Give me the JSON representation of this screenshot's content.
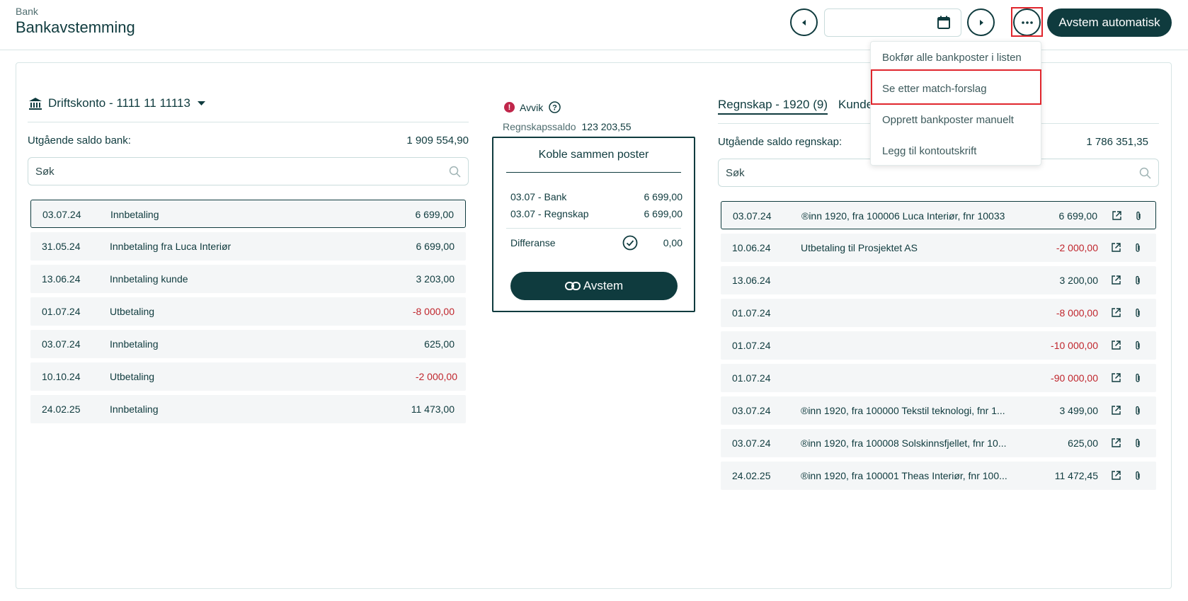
{
  "header": {
    "breadcrumb": "Bank",
    "title": "Bankavstemming",
    "date_value": "",
    "auto_button": "Avstem automatisk"
  },
  "menu": {
    "items": [
      {
        "label": "Bokfør alle bankposter i listen"
      },
      {
        "label": "Se etter match-forslag"
      },
      {
        "label": "Opprett bankposter manuelt"
      },
      {
        "label": "Legg til kontoutskrift"
      }
    ]
  },
  "bank": {
    "account": "Driftskonto - 1111 11 11113",
    "saldo_label": "Utgående saldo bank:",
    "saldo_value": "1 909 554,90",
    "search_placeholder": "Søk",
    "rows": [
      {
        "date": "03.07.24",
        "text": "Innbetaling",
        "amount": "6 699,00"
      },
      {
        "date": "31.05.24",
        "text": "Innbetaling fra Luca Interiør",
        "amount": "6 699,00"
      },
      {
        "date": "13.06.24",
        "text": "Innbetaling kunde",
        "amount": "3 203,00"
      },
      {
        "date": "01.07.24",
        "text": "Utbetaling",
        "amount": "-8 000,00"
      },
      {
        "date": "03.07.24",
        "text": "Innbetaling",
        "amount": "625,00"
      },
      {
        "date": "10.10.24",
        "text": "Utbetaling",
        "amount": "-2 000,00"
      },
      {
        "date": "24.02.25",
        "text": "Innbetaling",
        "amount": "11 473,00"
      }
    ]
  },
  "match": {
    "status": "Avvik",
    "regnskapssaldo_label": "Regnskapssaldo",
    "regnskapssaldo_value": "123 203,55",
    "title": "Koble sammen poster",
    "lines": [
      {
        "label": "03.07 - Bank",
        "value": "6 699,00"
      },
      {
        "label": "03.07 - Regnskap",
        "value": "6 699,00"
      }
    ],
    "diff_label": "Differanse",
    "diff_value": "0,00",
    "button": "Avstem"
  },
  "ledger": {
    "tabs": [
      {
        "label": "Regnskap - 1920 (9)"
      },
      {
        "label": "Kunde"
      }
    ],
    "saldo_label": "Utgående saldo regnskap:",
    "saldo_value": "1 786 351,35",
    "search_placeholder": "Søk",
    "rows": [
      {
        "date": "03.07.24",
        "text": "®inn 1920, fra 100006 Luca Interiør, fnr 10033",
        "amount": "6 699,00"
      },
      {
        "date": "10.06.24",
        "text": "Utbetaling til Prosjektet AS",
        "amount": "-2 000,00"
      },
      {
        "date": "13.06.24",
        "text": "",
        "amount": "3 200,00"
      },
      {
        "date": "01.07.24",
        "text": "",
        "amount": "-8 000,00"
      },
      {
        "date": "01.07.24",
        "text": "",
        "amount": "-10 000,00"
      },
      {
        "date": "01.07.24",
        "text": "",
        "amount": "-90 000,00"
      },
      {
        "date": "03.07.24",
        "text": "®inn 1920, fra 100000 Tekstil teknologi, fnr 1...",
        "amount": "3 499,00"
      },
      {
        "date": "03.07.24",
        "text": "®inn 1920, fra 100008 Solskinnsfjellet, fnr 10...",
        "amount": "625,00"
      },
      {
        "date": "24.02.25",
        "text": "®inn 1920, fra 100001 Theas Interiør, fnr 100...",
        "amount": "11 472,45"
      }
    ]
  },
  "colors": {
    "primary": "#0f3b3e",
    "negative": "#c0262d",
    "highlight": "#e0262d",
    "row_bg": "#f4f6f7"
  }
}
